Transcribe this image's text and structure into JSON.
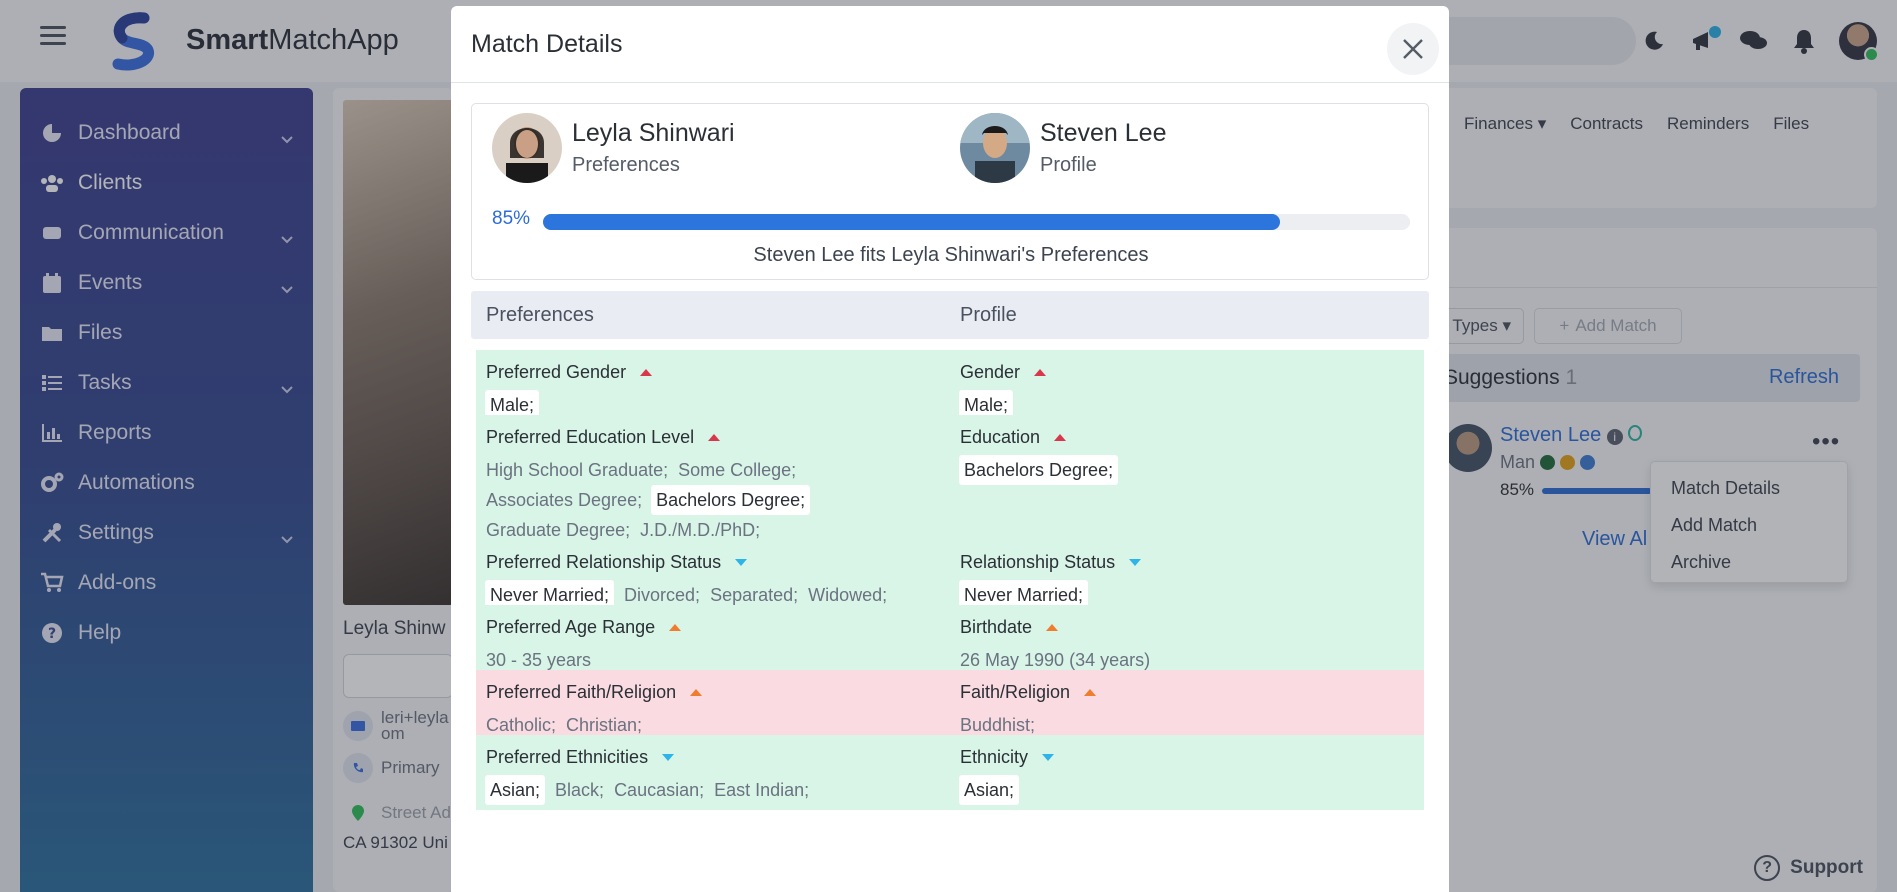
{
  "app": {
    "brand_strong": "Smart",
    "brand_rest": "MatchApp"
  },
  "sidebar": {
    "items": [
      {
        "label": "Dashboard",
        "icon": "dashboard-icon",
        "chevron": true
      },
      {
        "label": "Clients",
        "icon": "users-icon",
        "chevron": false
      },
      {
        "label": "Communication",
        "icon": "communication-icon",
        "chevron": true
      },
      {
        "label": "Events",
        "icon": "calendar-icon",
        "chevron": true
      },
      {
        "label": "Files",
        "icon": "folder-icon",
        "chevron": false
      },
      {
        "label": "Tasks",
        "icon": "tasks-icon",
        "chevron": true
      },
      {
        "label": "Reports",
        "icon": "reports-icon",
        "chevron": false
      },
      {
        "label": "Automations",
        "icon": "gears-icon",
        "chevron": false
      },
      {
        "label": "Settings",
        "icon": "tools-icon",
        "chevron": true
      },
      {
        "label": "Add-ons",
        "icon": "cart-icon",
        "chevron": false
      },
      {
        "label": "Help",
        "icon": "help-icon",
        "chevron": false
      }
    ]
  },
  "profile_card": {
    "name_partial": "Leyla Shinw",
    "email_partial_1": "leri+leyla",
    "email_partial_2": "om",
    "phone_partial": "Primary",
    "address_partial": "Street Ad",
    "address_line2": "CA 91302 Uni"
  },
  "right_panel": {
    "tabs": [
      "Finances",
      "Contracts",
      "Reminders",
      "Files"
    ],
    "types_label": "Types",
    "add_match_label": "Add Match",
    "suggestions_label": "Suggestions",
    "suggestions_count": "1",
    "refresh_label": "Refresh",
    "suggestion": {
      "name": "Steven Lee",
      "gender": "Man",
      "percent": "85%",
      "percent_value": 0.85,
      "dot_colors": [
        "#1f6b3a",
        "#e2a218",
        "#3c7bd1"
      ]
    },
    "view_all_label": "View Al",
    "menu": [
      "Match Details",
      "Add Match",
      "Archive"
    ],
    "support_label": "Support"
  },
  "modal": {
    "title": "Match Details",
    "person_a": {
      "name": "Leyla Shinwari",
      "role": "Preferences"
    },
    "person_b": {
      "name": "Steven Lee",
      "role": "Profile"
    },
    "match_percent_label": "85%",
    "match_percent_value": 0.85,
    "fit_text": "Steven Lee fits Leyla Shinwari's Preferences",
    "col_preferences": "Preferences",
    "col_profile": "Profile",
    "rows": [
      {
        "status": "ok",
        "pref_label": "Preferred Gender",
        "pref_icon": "up-red",
        "pref_values": [
          {
            "t": "Male;",
            "hl": true
          }
        ],
        "prof_label": "Gender",
        "prof_icon": "up-red",
        "prof_values": [
          {
            "t": "Male;",
            "hl": true
          }
        ]
      },
      {
        "status": "ok",
        "pref_label": "Preferred Education Level",
        "pref_icon": "up-red",
        "pref_values": [
          {
            "t": "High School Graduate;",
            "hl": false
          },
          {
            "t": "Some College;",
            "hl": false
          },
          {
            "t": "Associates Degree;",
            "hl": false
          },
          {
            "t": "Bachelors Degree;",
            "hl": true
          },
          {
            "t": "Graduate Degree;",
            "hl": false
          },
          {
            "t": "J.D./M.D./PhD;",
            "hl": false
          }
        ],
        "prof_label": "Education",
        "prof_icon": "up-red",
        "prof_values": [
          {
            "t": "Bachelors Degree;",
            "hl": true
          }
        ]
      },
      {
        "status": "ok",
        "pref_label": "Preferred Relationship Status",
        "pref_icon": "down-blue",
        "pref_values": [
          {
            "t": "Never Married;",
            "hl": true
          },
          {
            "t": "Divorced;",
            "hl": false
          },
          {
            "t": "Separated;",
            "hl": false
          },
          {
            "t": "Widowed;",
            "hl": false
          }
        ],
        "prof_label": "Relationship Status",
        "prof_icon": "down-blue",
        "prof_values": [
          {
            "t": "Never Married;",
            "hl": true
          }
        ]
      },
      {
        "status": "ok",
        "pref_label": "Preferred Age Range",
        "pref_icon": "up-orange",
        "pref_values": [
          {
            "t": "30 - 35 years",
            "hl": false
          }
        ],
        "prof_label": "Birthdate",
        "prof_icon": "up-orange",
        "prof_values": [
          {
            "t": "26 May 1990 (34 years)",
            "hl": false
          }
        ]
      },
      {
        "status": "bad",
        "pref_label": "Preferred Faith/Religion",
        "pref_icon": "up-orange",
        "pref_values": [
          {
            "t": "Catholic;",
            "hl": false
          },
          {
            "t": "Christian;",
            "hl": false
          }
        ],
        "prof_label": "Faith/Religion",
        "prof_icon": "up-orange",
        "prof_values": [
          {
            "t": "Buddhist;",
            "hl": false
          }
        ]
      },
      {
        "status": "ok",
        "pref_label": "Preferred Ethnicities",
        "pref_icon": "down-blue",
        "pref_values": [
          {
            "t": "Asian;",
            "hl": true
          },
          {
            "t": "Black;",
            "hl": false
          },
          {
            "t": "Caucasian;",
            "hl": false
          },
          {
            "t": "East Indian;",
            "hl": false
          }
        ],
        "prof_label": "Ethnicity",
        "prof_icon": "down-blue",
        "prof_values": [
          {
            "t": "Asian;",
            "hl": true
          }
        ]
      }
    ]
  }
}
